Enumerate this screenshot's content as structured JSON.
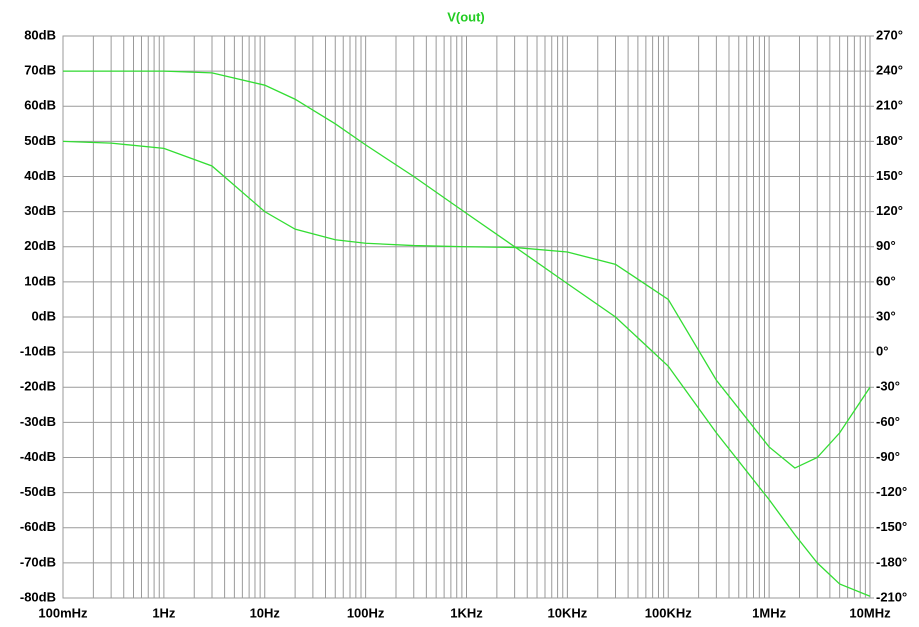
{
  "chart_data": {
    "type": "line",
    "title": "V(out)",
    "title_color": "#22cc22",
    "x_scale": "log",
    "grid": true,
    "minor_grid": true,
    "x": [
      0.1,
      0.3,
      1,
      3,
      10,
      20,
      50,
      100,
      300,
      1000,
      3000,
      10000,
      30000,
      100000,
      300000,
      1000000,
      1800000,
      3000000,
      5000000,
      10000000
    ],
    "series": [
      {
        "color": "#33dd33",
        "values": [
          70,
          70,
          70,
          69.5,
          66,
          62,
          55,
          49,
          40,
          29.5,
          20,
          9.5,
          0,
          -14,
          -33,
          -52,
          -62,
          -70,
          -76,
          -79.5
        ]
      },
      {
        "color": "#33dd33",
        "axis": "y2",
        "values": [
          180,
          178.5,
          174,
          159,
          120,
          105,
          96,
          93,
          91,
          90,
          89.4,
          85.5,
          75,
          45,
          -24,
          -81,
          -99,
          -90,
          -69,
          -30
        ]
      }
    ],
    "xlim": [
      0.1,
      10000000
    ],
    "xticks": [
      {
        "value": 0.1,
        "label": "100mHz"
      },
      {
        "value": 1,
        "label": "1Hz"
      },
      {
        "value": 10,
        "label": "10Hz"
      },
      {
        "value": 100,
        "label": "100Hz"
      },
      {
        "value": 1000,
        "label": "1KHz"
      },
      {
        "value": 10000,
        "label": "10KHz"
      },
      {
        "value": 100000,
        "label": "100KHz"
      },
      {
        "value": 1000000,
        "label": "1MHz"
      },
      {
        "value": 10000000,
        "label": "10MHz"
      }
    ],
    "ylim": [
      -80,
      80
    ],
    "yticks": [
      {
        "value": 80,
        "label": "80dB"
      },
      {
        "value": 70,
        "label": "70dB"
      },
      {
        "value": 60,
        "label": "60dB"
      },
      {
        "value": 50,
        "label": "50dB"
      },
      {
        "value": 40,
        "label": "40dB"
      },
      {
        "value": 30,
        "label": "30dB"
      },
      {
        "value": 20,
        "label": "20dB"
      },
      {
        "value": 10,
        "label": "10dB"
      },
      {
        "value": 0,
        "label": "0dB"
      },
      {
        "value": -10,
        "label": "-10dB"
      },
      {
        "value": -20,
        "label": "-20dB"
      },
      {
        "value": -30,
        "label": "-30dB"
      },
      {
        "value": -40,
        "label": "-40dB"
      },
      {
        "value": -50,
        "label": "-50dB"
      },
      {
        "value": -60,
        "label": "-60dB"
      },
      {
        "value": -70,
        "label": "-70dB"
      },
      {
        "value": -80,
        "label": "-80dB"
      }
    ],
    "y2lim": [
      -210,
      270
    ],
    "y2ticks": [
      {
        "value": 270,
        "label": "270°"
      },
      {
        "value": 240,
        "label": "240°"
      },
      {
        "value": 210,
        "label": "210°"
      },
      {
        "value": 180,
        "label": "180°"
      },
      {
        "value": 150,
        "label": "150°"
      },
      {
        "value": 120,
        "label": "120°"
      },
      {
        "value": 90,
        "label": "90°"
      },
      {
        "value": 60,
        "label": "60°"
      },
      {
        "value": 30,
        "label": "30°"
      },
      {
        "value": 0,
        "label": "0°"
      },
      {
        "value": -30,
        "label": "-30°"
      },
      {
        "value": -60,
        "label": "-60°"
      },
      {
        "value": -90,
        "label": "-90°"
      },
      {
        "value": -120,
        "label": "-120°"
      },
      {
        "value": -150,
        "label": "-150°"
      },
      {
        "value": -180,
        "label": "-180°"
      },
      {
        "value": -210,
        "label": "-210°"
      }
    ]
  }
}
